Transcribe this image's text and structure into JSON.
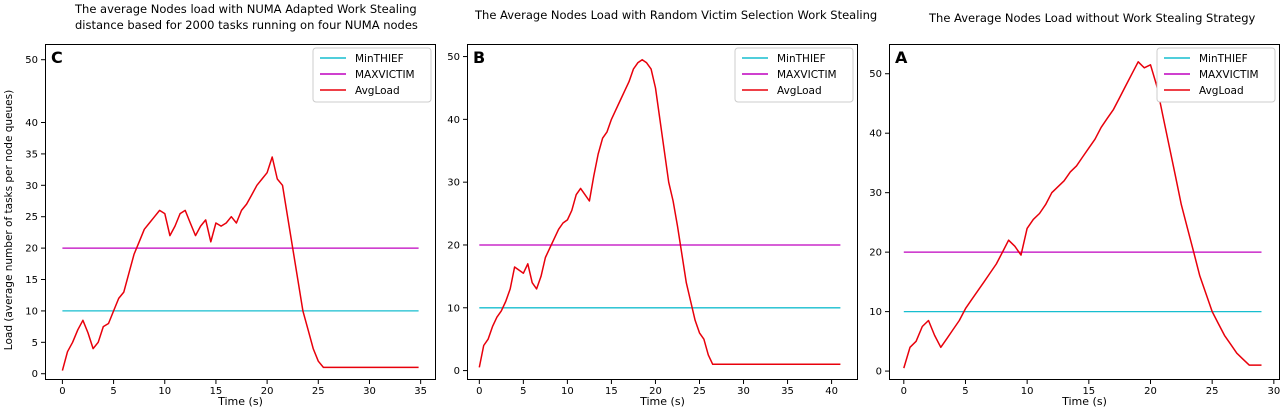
{
  "panels": [
    {
      "id": "C",
      "title_lines": [
        "The average Nodes load with NUMA Adapted Work Stealing",
        "distance based for 2000 tasks running on four NUMA nodes"
      ]
    },
    {
      "id": "B",
      "title_lines": [
        "The Average Nodes Load with Random Victim Selection Work Stealing"
      ]
    },
    {
      "id": "A",
      "title_lines": [
        "The Average Nodes Load without Work Stealing Strategy"
      ]
    }
  ],
  "colors": {
    "minthief": "#17becf",
    "maxvictim": "#bf00bf",
    "avgload": "#e8000b",
    "axes": "#000000",
    "background": "#ffffff"
  },
  "chart_data": [
    {
      "panel_letter": "C",
      "type": "line",
      "title": "The average Nodes load with NUMA Adapted Work Stealing distance based for 2000 tasks running on four NUMA nodes",
      "xlabel": "Time (s)",
      "ylabel": "Load (average number of tasks per node queues)",
      "xlim": [
        -1.7,
        36.5
      ],
      "ylim": [
        -1,
        52.5
      ],
      "xticks": [
        0,
        5,
        10,
        15,
        20,
        25,
        30,
        35
      ],
      "yticks": [
        0,
        5,
        10,
        15,
        20,
        25,
        30,
        35,
        40,
        50
      ],
      "legend_position": "top-right",
      "legend": [
        "MinTHIEF",
        "MAXVICTIM",
        "AvgLoad"
      ],
      "grid": false,
      "series": [
        {
          "name": "MinTHIEF",
          "x": [
            0,
            34.8
          ],
          "y": [
            10,
            10
          ]
        },
        {
          "name": "MAXVICTIM",
          "x": [
            0,
            34.8
          ],
          "y": [
            20,
            20
          ]
        },
        {
          "name": "AvgLoad",
          "x": [
            0,
            0.5,
            1,
            1.5,
            2,
            2.5,
            3,
            3.5,
            4,
            4.5,
            5,
            5.5,
            6,
            6.5,
            7,
            7.5,
            8,
            8.5,
            9,
            9.5,
            10,
            10.5,
            11,
            11.5,
            12,
            12.5,
            13,
            13.5,
            14,
            14.5,
            15,
            15.5,
            16,
            16.5,
            17,
            17.5,
            18,
            18.5,
            19,
            19.5,
            20,
            20.5,
            21,
            21.5,
            22,
            22.5,
            23,
            23.5,
            24,
            24.5,
            25,
            25.5,
            26,
            34.8
          ],
          "y": [
            0.5,
            3.5,
            5,
            7,
            8.5,
            6.5,
            4,
            5,
            7.5,
            8,
            10,
            12,
            13,
            16,
            19,
            21,
            23,
            24,
            25,
            26,
            25.5,
            22,
            23.5,
            25.5,
            26,
            24,
            22,
            23.5,
            24.5,
            21,
            24,
            23.5,
            24,
            25,
            24,
            26,
            27,
            28.5,
            30,
            31,
            32,
            34.5,
            31,
            30,
            25,
            20,
            15,
            10,
            7,
            4,
            2,
            1,
            1,
            1
          ]
        }
      ]
    },
    {
      "panel_letter": "B",
      "type": "line",
      "title": "The Average Nodes Load with Random Victim Selection Work Stealing",
      "xlabel": "Time (s)",
      "ylabel": "",
      "xlim": [
        -1.4,
        43
      ],
      "ylim": [
        -1.5,
        52
      ],
      "xticks": [
        0,
        5,
        10,
        15,
        20,
        25,
        30,
        35,
        40
      ],
      "yticks": [
        0,
        10,
        20,
        30,
        40,
        50
      ],
      "legend_position": "top-right",
      "legend": [
        "MinTHIEF",
        "MAXVICTIM",
        "AvgLoad"
      ],
      "grid": false,
      "series": [
        {
          "name": "MinTHIEF",
          "x": [
            0,
            41
          ],
          "y": [
            10,
            10
          ]
        },
        {
          "name": "MAXVICTIM",
          "x": [
            0,
            41
          ],
          "y": [
            20,
            20
          ]
        },
        {
          "name": "AvgLoad",
          "x": [
            0,
            0.5,
            1,
            1.5,
            2,
            2.5,
            3,
            3.5,
            4,
            4.5,
            5,
            5.5,
            6,
            6.5,
            7,
            7.5,
            8,
            8.5,
            9,
            9.5,
            10,
            10.5,
            11,
            11.5,
            12,
            12.5,
            13,
            13.5,
            14,
            14.5,
            15,
            15.5,
            16,
            16.5,
            17,
            17.5,
            18,
            18.5,
            19,
            19.5,
            20,
            20.5,
            21,
            21.5,
            22,
            22.5,
            23,
            23.5,
            24,
            24.5,
            25,
            25.5,
            26,
            26.5,
            27,
            41
          ],
          "y": [
            0.5,
            4,
            5,
            7,
            8.5,
            9.5,
            11,
            13,
            16.5,
            16,
            15.5,
            17,
            14,
            13,
            15,
            18,
            19.5,
            21,
            22.5,
            23.5,
            24,
            25.5,
            28,
            29,
            28,
            27,
            31,
            34.5,
            37,
            38,
            40,
            41.5,
            43,
            44.5,
            46,
            48,
            49,
            49.5,
            49,
            48,
            45,
            40,
            35,
            30,
            27,
            23,
            18.5,
            14,
            11,
            8,
            6,
            5,
            2.5,
            1,
            1,
            1
          ]
        }
      ]
    },
    {
      "panel_letter": "A",
      "type": "line",
      "title": "The Average Nodes Load without Work Stealing Strategy",
      "xlabel": "Time (s)",
      "ylabel": "",
      "xlim": [
        -1.2,
        30.5
      ],
      "ylim": [
        -1.5,
        55
      ],
      "xticks": [
        0,
        5,
        10,
        15,
        20,
        25,
        30
      ],
      "yticks": [
        0,
        10,
        20,
        30,
        40,
        50
      ],
      "legend_position": "top-right",
      "legend": [
        "MinTHIEF",
        "MAXVICTIM",
        "AvgLoad"
      ],
      "grid": false,
      "series": [
        {
          "name": "MinTHIEF",
          "x": [
            0,
            29
          ],
          "y": [
            10,
            10
          ]
        },
        {
          "name": "MAXVICTIM",
          "x": [
            0,
            29
          ],
          "y": [
            20,
            20
          ]
        },
        {
          "name": "AvgLoad",
          "x": [
            0,
            0.5,
            1,
            1.5,
            2,
            2.5,
            3,
            3.5,
            4,
            4.5,
            5,
            5.5,
            6,
            6.5,
            7,
            7.5,
            8,
            8.5,
            9,
            9.5,
            10,
            10.5,
            11,
            11.5,
            12,
            12.5,
            13,
            13.5,
            14,
            14.5,
            15,
            15.5,
            16,
            16.5,
            17,
            17.5,
            18,
            18.5,
            19,
            19.5,
            20,
            20.5,
            21,
            21.5,
            22,
            22.5,
            23,
            23.5,
            24,
            24.5,
            25,
            25.5,
            26,
            26.5,
            27,
            27.5,
            28,
            29
          ],
          "y": [
            0.5,
            4,
            5,
            7.5,
            8.5,
            6,
            4,
            5.5,
            7,
            8.5,
            10.5,
            12,
            13.5,
            15,
            16.5,
            18,
            20,
            22,
            21,
            19.5,
            24,
            25.5,
            26.5,
            28,
            30,
            31,
            32,
            33.5,
            34.5,
            36,
            37.5,
            39,
            41,
            42.5,
            44,
            46,
            48,
            50,
            52,
            51,
            51.5,
            48,
            43,
            38,
            33,
            28,
            24,
            20,
            16,
            13,
            10,
            8,
            6,
            4.5,
            3,
            2,
            1,
            1
          ]
        }
      ]
    }
  ]
}
